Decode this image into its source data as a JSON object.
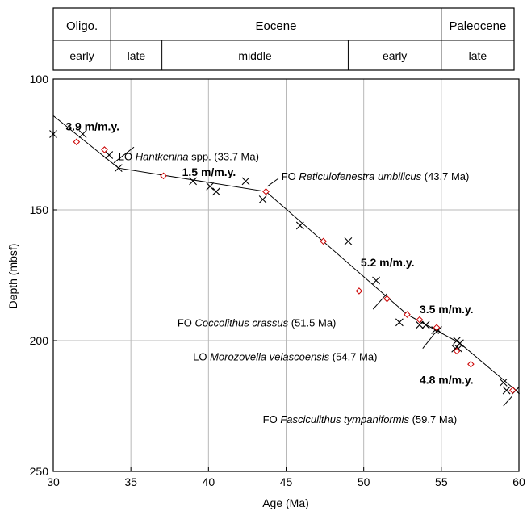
{
  "chart_data": {
    "type": "scatter",
    "title": "",
    "xlabel": "Age (Ma)",
    "ylabel": "Depth (mbsf)",
    "xlim": [
      30,
      60
    ],
    "ylim": [
      100,
      250
    ],
    "y_inverted": true,
    "grid": true,
    "x_ticks": [
      "30",
      "35",
      "40",
      "45",
      "50",
      "55",
      "60"
    ],
    "y_ticks": [
      "100",
      "150",
      "200",
      "250"
    ],
    "epochs": [
      {
        "label": "Oligo.",
        "from": 28.4,
        "to": 33.7
      },
      {
        "label": "Eocene",
        "from": 33.7,
        "to": 55.0
      },
      {
        "label": "Paleocene",
        "from": 55.0,
        "to": 60.0
      }
    ],
    "subepochs": [
      {
        "label": "early",
        "from": 28.4,
        "to": 33.7
      },
      {
        "label": "late",
        "from": 33.7,
        "to": 37.0
      },
      {
        "label": "middle",
        "from": 37.0,
        "to": 49.0
      },
      {
        "label": "early",
        "from": 49.0,
        "to": 55.0
      },
      {
        "label": "late",
        "from": 55.0,
        "to": 60.0
      }
    ],
    "series": [
      {
        "marker": "x",
        "color": "#000000",
        "points": [
          [
            30.0,
            121
          ],
          [
            31.9,
            121
          ],
          [
            33.6,
            129
          ],
          [
            34.2,
            134
          ],
          [
            39.0,
            139
          ],
          [
            40.1,
            141
          ],
          [
            40.5,
            143
          ],
          [
            42.4,
            139
          ],
          [
            43.5,
            146
          ],
          [
            45.9,
            156
          ],
          [
            49.0,
            162
          ],
          [
            50.8,
            177
          ],
          [
            52.3,
            193
          ],
          [
            53.6,
            194
          ],
          [
            54.0,
            194
          ],
          [
            54.6,
            196
          ],
          [
            54.8,
            196
          ],
          [
            55.9,
            203
          ],
          [
            56.0,
            200
          ],
          [
            56.2,
            201
          ],
          [
            56.1,
            203
          ],
          [
            59.0,
            216
          ],
          [
            59.2,
            219
          ],
          [
            59.8,
            219
          ]
        ]
      },
      {
        "marker": "diamond",
        "color": "#cc0000",
        "points": [
          [
            31.5,
            124
          ],
          [
            33.3,
            127
          ],
          [
            37.1,
            137
          ],
          [
            43.7,
            143
          ],
          [
            47.4,
            162
          ],
          [
            49.7,
            181
          ],
          [
            51.5,
            184
          ],
          [
            52.8,
            190
          ],
          [
            53.6,
            192
          ],
          [
            54.7,
            195
          ],
          [
            56.0,
            204
          ],
          [
            56.9,
            209
          ],
          [
            59.6,
            219
          ]
        ]
      }
    ],
    "line_of_correlation": [
      [
        30.0,
        114
      ],
      [
        34.2,
        134
      ],
      [
        43.7,
        143
      ],
      [
        52.8,
        190
      ],
      [
        56.2,
        201
      ],
      [
        59.8,
        219
      ]
    ],
    "rates": [
      {
        "label": "3.9 m/m.y.",
        "x": 30.8,
        "y": 118
      },
      {
        "label": "1.5 m/m.y.",
        "x": 38.3,
        "y": 135.5
      },
      {
        "label": "5.2 m/m.y.",
        "x": 49.8,
        "y": 170
      },
      {
        "label": "3.5 m/m.y.",
        "x": 53.6,
        "y": 188
      },
      {
        "label": "4.8 m/m.y.",
        "x": 53.6,
        "y": 215
      }
    ],
    "events": [
      {
        "prefix": "LO ",
        "taxon": "Hantkenina",
        "suffix": " spp. (33.7 Ma)",
        "x": 34.2,
        "y": 129.5,
        "leader": [
          [
            33.9,
            132
          ],
          [
            35.2,
            126
          ]
        ]
      },
      {
        "prefix": "FO ",
        "taxon": "Reticulofenestra umbilicus",
        "suffix": " (43.7 Ma)",
        "x": 44.7,
        "y": 137,
        "leader": [
          [
            43.8,
            141
          ],
          [
            44.5,
            138
          ]
        ]
      },
      {
        "prefix": "FO ",
        "taxon": "Coccolithus crassus",
        "suffix": " (51.5 Ma)",
        "x": 38.0,
        "y": 193,
        "leader": [
          [
            50.6,
            188
          ],
          [
            51.5,
            182
          ]
        ]
      },
      {
        "prefix": "LO ",
        "taxon": "Morozovella velascoensis",
        "suffix": " (54.7 Ma)",
        "x": 39.0,
        "y": 206,
        "leader": [
          [
            53.8,
            203
          ],
          [
            54.6,
            197
          ]
        ]
      },
      {
        "prefix": "FO ",
        "taxon": "Fasciculithus tympaniformis",
        "suffix": " (59.7 Ma)",
        "x": 43.5,
        "y": 230,
        "leader": [
          [
            59.0,
            225
          ],
          [
            59.6,
            221
          ]
        ]
      }
    ]
  }
}
